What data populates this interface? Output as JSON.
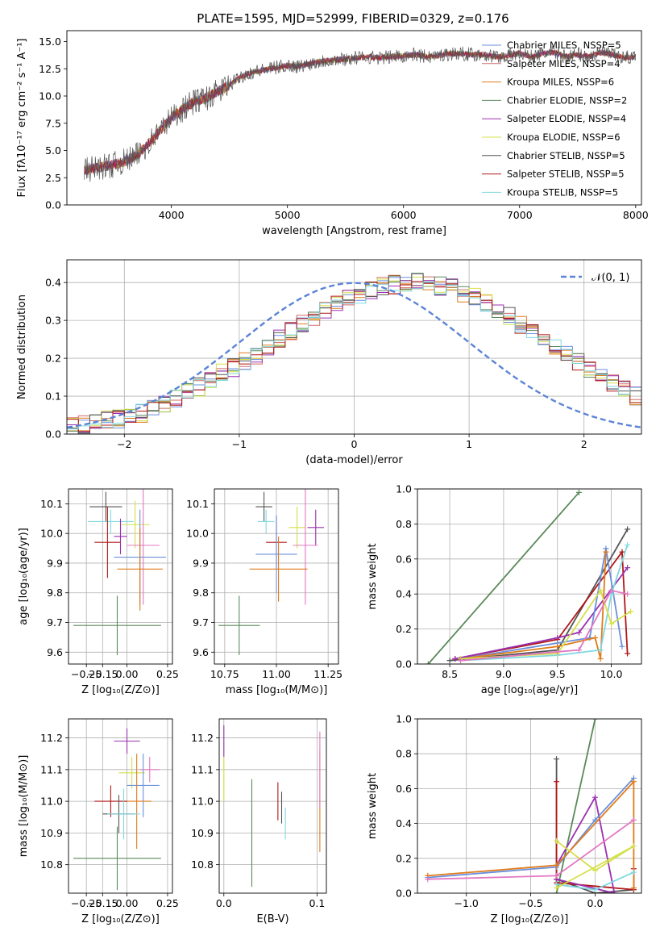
{
  "figure": {
    "title": "PLATE=1595, MJD=52999, FIBERID=0329, z=0.176",
    "legend_colors": [
      "#6a8fdc",
      "#d46a6a",
      "#e07b1a",
      "#5a8a5a",
      "#9b30b0",
      "#d4e04a",
      "#555555",
      "#b01818",
      "#7fd8e0"
    ]
  },
  "chart_data": [
    {
      "id": "spectrum",
      "type": "line",
      "xlabel": "wavelength [Angstrom, rest frame]",
      "ylabel": "Flux [fλ10⁻¹⁷ erg cm⁻² s⁻¹ A⁻¹]",
      "xlim": [
        3100,
        8050
      ],
      "ylim": [
        0,
        16
      ],
      "xticks": [
        4000,
        5000,
        6000,
        7000,
        8000
      ],
      "yticks": [
        0.0,
        2.5,
        5.0,
        7.5,
        10.0,
        12.5,
        15.0
      ],
      "grid": false,
      "legend_position": "top-right",
      "series": [
        {
          "name": "Chabrier MILES, N_SSP=5",
          "color": "#6a8fdc"
        },
        {
          "name": "Salpeter MILES, N_SSP=4",
          "color": "#d46a6a"
        },
        {
          "name": "Kroupa MILES, N_SSP=6",
          "color": "#e07b1a"
        },
        {
          "name": "Chabrier ELODIE, N_SSP=2",
          "color": "#5a8a5a"
        },
        {
          "name": "Salpeter ELODIE, N_SSP=4",
          "color": "#9b30b0"
        },
        {
          "name": "Kroupa ELODIE, N_SSP=6",
          "color": "#d4e04a"
        },
        {
          "name": "Chabrier STELIB, N_SSP=5",
          "color": "#555555"
        },
        {
          "name": "Salpeter STELIB, N_SSP=5",
          "color": "#b01818"
        },
        {
          "name": "Kroupa STELIB, N_SSP=5",
          "color": "#7fd8e0"
        }
      ],
      "data": {
        "x": [
          3250,
          3400,
          3550,
          3700,
          3850,
          4000,
          4100,
          4200,
          4300,
          4400,
          4500,
          4600,
          4700,
          4800,
          4900,
          5000,
          5100,
          5200,
          5300,
          5400,
          5500,
          5600,
          5700,
          5800,
          5900,
          6000,
          6100,
          6200,
          6300,
          6400,
          6500,
          6600,
          6700,
          6800,
          6900,
          7000,
          7100,
          7200,
          7300,
          7400,
          7500,
          7600,
          7700,
          7800,
          7900,
          8000
        ],
        "y": [
          3.2,
          3.5,
          3.8,
          4.5,
          6.2,
          8.0,
          8.8,
          9.5,
          9.8,
          10.4,
          11.0,
          11.8,
          12.2,
          12.4,
          12.6,
          12.8,
          12.7,
          13.0,
          13.2,
          13.3,
          13.4,
          13.5,
          13.6,
          13.5,
          13.6,
          13.7,
          13.8,
          13.6,
          13.7,
          13.9,
          13.9,
          13.8,
          13.8,
          13.6,
          13.7,
          13.9,
          13.6,
          13.9,
          14.0,
          13.6,
          13.8,
          13.6,
          14.0,
          13.8,
          13.5,
          13.6
        ]
      }
    },
    {
      "id": "residuals",
      "type": "bar",
      "xlabel": "(data-model)/error",
      "ylabel": "Normed distribution",
      "xlim": [
        -2.5,
        2.5
      ],
      "ylim": [
        0,
        0.46
      ],
      "xticks": [
        -2,
        -1,
        0,
        1,
        2
      ],
      "yticks": [
        0.0,
        0.1,
        0.2,
        0.3,
        0.4
      ],
      "grid": true,
      "legend_position": "top-right",
      "legend": "𝒩(0, 1)",
      "bin_width": 0.1,
      "bin_start": -2.5,
      "values": [
        0.02,
        0.025,
        0.03,
        0.04,
        0.04,
        0.045,
        0.055,
        0.065,
        0.08,
        0.095,
        0.11,
        0.125,
        0.14,
        0.16,
        0.175,
        0.19,
        0.21,
        0.23,
        0.25,
        0.27,
        0.29,
        0.31,
        0.33,
        0.345,
        0.36,
        0.37,
        0.38,
        0.39,
        0.395,
        0.4,
        0.4,
        0.395,
        0.39,
        0.385,
        0.37,
        0.36,
        0.345,
        0.33,
        0.31,
        0.29,
        0.27,
        0.25,
        0.23,
        0.21,
        0.19,
        0.17,
        0.15,
        0.135,
        0.12,
        0.1
      ]
    },
    {
      "id": "age-vs-z",
      "type": "scatter",
      "xlabel": "Z [log₁₀(Z/Z⊙)]",
      "ylabel": "age  [log₁₀(age/yr)]",
      "xlim": [
        -0.36,
        0.28
      ],
      "ylim": [
        9.56,
        10.15
      ],
      "xticks": [
        -0.25,
        -0.15,
        0.0,
        0.25
      ],
      "xticklabels": [
        "−0.25",
        "−0.15",
        "0.00",
        "0.25"
      ],
      "yticks": [
        9.6,
        9.7,
        9.8,
        9.9,
        10.0,
        10.1
      ],
      "grid": true,
      "points": [
        {
          "x": -0.13,
          "y": 10.09,
          "xe": 0.1,
          "ye": 0.05,
          "color": "#555555"
        },
        {
          "x": -0.1,
          "y": 10.04,
          "xe": 0.14,
          "ye": 0.04,
          "color": "#7fd8e0"
        },
        {
          "x": 0.05,
          "y": 10.03,
          "xe": 0.09,
          "ye": 0.08,
          "color": "#d4e04a"
        },
        {
          "x": -0.12,
          "y": 9.97,
          "xe": 0.08,
          "ye": 0.12,
          "color": "#b01818"
        },
        {
          "x": -0.04,
          "y": 9.99,
          "xe": 0.04,
          "ye": 0.06,
          "color": "#9b30b0"
        },
        {
          "x": 0.1,
          "y": 9.96,
          "xe": 0.1,
          "ye": 0.2,
          "color": "#e377c2"
        },
        {
          "x": 0.08,
          "y": 9.92,
          "xe": 0.16,
          "ye": 0.16,
          "color": "#6a8fdc"
        },
        {
          "x": 0.08,
          "y": 9.88,
          "xe": 0.14,
          "ye": 0.14,
          "color": "#e07b1a"
        },
        {
          "x": -0.06,
          "y": 9.69,
          "xe": 0.27,
          "ye": 0.1,
          "color": "#5a8a5a"
        }
      ]
    },
    {
      "id": "age-vs-mass",
      "type": "scatter",
      "xlabel": "mass [log₁₀(M/M⊙)]",
      "ylabel": "",
      "xlim": [
        10.7,
        11.3
      ],
      "ylim": [
        9.56,
        10.15
      ],
      "xticks": [
        10.75,
        11.0,
        11.25
      ],
      "yticks": [
        9.6,
        9.7,
        9.8,
        9.9,
        10.0,
        10.1
      ],
      "grid": true,
      "points": [
        {
          "x": 10.94,
          "y": 10.09,
          "xe": 0.04,
          "ye": 0.05,
          "color": "#555555"
        },
        {
          "x": 10.95,
          "y": 10.04,
          "xe": 0.04,
          "ye": 0.04,
          "color": "#7fd8e0"
        },
        {
          "x": 11.1,
          "y": 10.02,
          "xe": 0.04,
          "ye": 0.07,
          "color": "#d4e04a"
        },
        {
          "x": 11.19,
          "y": 10.02,
          "xe": 0.04,
          "ye": 0.06,
          "color": "#9b30b0"
        },
        {
          "x": 11.0,
          "y": 9.97,
          "xe": 0.05,
          "ye": 0.09,
          "color": "#b01818"
        },
        {
          "x": 11.14,
          "y": 9.96,
          "xe": 0.06,
          "ye": 0.2,
          "color": "#e377c2"
        },
        {
          "x": 11.0,
          "y": 9.93,
          "xe": 0.1,
          "ye": 0.13,
          "color": "#6a8fdc"
        },
        {
          "x": 11.01,
          "y": 9.88,
          "xe": 0.14,
          "ye": 0.11,
          "color": "#e07b1a"
        },
        {
          "x": 10.82,
          "y": 9.69,
          "xe": 0.1,
          "ye": 0.1,
          "color": "#5a8a5a"
        }
      ]
    },
    {
      "id": "weight-vs-age",
      "type": "line",
      "xlabel": "age  [log₁₀(age/yr)]",
      "ylabel": "mass weight",
      "xlim": [
        8.2,
        10.28
      ],
      "ylim": [
        0,
        1.0
      ],
      "xticks": [
        8.5,
        9.0,
        9.5,
        10.0
      ],
      "yticks": [
        0.0,
        0.2,
        0.4,
        0.6,
        0.8,
        1.0
      ],
      "grid": true,
      "series": [
        {
          "color": "#5a8a5a",
          "x": [
            8.3,
            9.7
          ],
          "y": [
            0.0,
            0.98
          ]
        },
        {
          "color": "#555555",
          "x": [
            8.5,
            9.5,
            10.15
          ],
          "y": [
            0.02,
            0.08,
            0.77
          ]
        },
        {
          "color": "#b01818",
          "x": [
            8.55,
            9.5,
            10.1,
            10.15
          ],
          "y": [
            0.03,
            0.14,
            0.64,
            0.06
          ]
        },
        {
          "color": "#9b30b0",
          "x": [
            8.55,
            9.5,
            9.7,
            10.15
          ],
          "y": [
            0.03,
            0.15,
            0.18,
            0.55
          ]
        },
        {
          "color": "#6a8fdc",
          "x": [
            8.6,
            9.5,
            9.8,
            9.95,
            10.1
          ],
          "y": [
            0.03,
            0.12,
            0.15,
            0.66,
            0.1
          ]
        },
        {
          "color": "#e07b1a",
          "x": [
            8.6,
            9.5,
            9.85,
            9.9,
            9.95
          ],
          "y": [
            0.03,
            0.1,
            0.15,
            0.03,
            0.64
          ]
        },
        {
          "color": "#7fd8e0",
          "x": [
            8.6,
            9.5,
            9.9,
            10.0,
            10.15
          ],
          "y": [
            0.02,
            0.05,
            0.08,
            0.4,
            0.68
          ]
        },
        {
          "color": "#d4e04a",
          "x": [
            8.6,
            9.5,
            9.9,
            10.0,
            10.18
          ],
          "y": [
            0.03,
            0.06,
            0.42,
            0.23,
            0.3
          ]
        },
        {
          "color": "#e377c2",
          "x": [
            8.6,
            9.5,
            9.7,
            10.0,
            10.15
          ],
          "y": [
            0.02,
            0.07,
            0.08,
            0.42,
            0.4
          ]
        }
      ]
    },
    {
      "id": "mass-vs-z",
      "type": "scatter",
      "xlabel": "Z [log₁₀(Z/Z⊙)]",
      "ylabel": "mass [log₁₀(M/M⊙)]",
      "xlim": [
        -0.36,
        0.28
      ],
      "ylim": [
        10.71,
        11.26
      ],
      "xticks": [
        -0.25,
        -0.15,
        0.0,
        0.25
      ],
      "xticklabels": [
        "−0.25",
        "−0.15",
        "0.00",
        "0.25"
      ],
      "yticks": [
        10.8,
        10.9,
        11.0,
        11.1,
        11.2
      ],
      "grid": true,
      "points": [
        {
          "x": 0.0,
          "y": 11.19,
          "xe": 0.08,
          "ye": 0.04,
          "color": "#9b30b0"
        },
        {
          "x": 0.03,
          "y": 11.09,
          "xe": 0.08,
          "ye": 0.05,
          "color": "#d4e04a"
        },
        {
          "x": 0.1,
          "y": 11.05,
          "xe": 0.1,
          "ye": 0.1,
          "color": "#6a8fdc"
        },
        {
          "x": 0.06,
          "y": 11.0,
          "xe": 0.09,
          "ye": 0.15,
          "color": "#e07b1a"
        },
        {
          "x": -0.1,
          "y": 11.0,
          "xe": 0.1,
          "ye": 0.05,
          "color": "#b01818"
        },
        {
          "x": -0.05,
          "y": 10.96,
          "xe": 0.1,
          "ye": 0.06,
          "color": "#555555"
        },
        {
          "x": -0.02,
          "y": 10.96,
          "xe": 0.1,
          "ye": 0.08,
          "color": "#7fd8e0"
        },
        {
          "x": -0.06,
          "y": 10.82,
          "xe": 0.27,
          "ye": 0.1,
          "color": "#5a8a5a"
        },
        {
          "x": 0.14,
          "y": 11.1,
          "xe": 0.06,
          "ye": 0.04,
          "color": "#e377c2"
        }
      ]
    },
    {
      "id": "mass-vs-ebv",
      "type": "scatter",
      "xlabel": "E(B-V)",
      "ylabel": "",
      "xlim": [
        -0.005,
        0.11
      ],
      "ylim": [
        10.71,
        11.26
      ],
      "xticks": [
        0.0,
        0.1
      ],
      "yticks": [
        10.8,
        10.9,
        11.0,
        11.1,
        11.2
      ],
      "grid": true,
      "points": [
        {
          "x": 0.0,
          "y": 11.19,
          "xe": 0,
          "ye": 0.05,
          "color": "#9b30b0"
        },
        {
          "x": 0.0,
          "y": 11.07,
          "xe": 0,
          "ye": 0.07,
          "color": "#d4e04a"
        },
        {
          "x": 0.03,
          "y": 10.9,
          "xe": 0,
          "ye": 0.17,
          "color": "#5a8a5a"
        },
        {
          "x": 0.058,
          "y": 11.0,
          "xe": 0,
          "ye": 0.06,
          "color": "#b01818"
        },
        {
          "x": 0.062,
          "y": 10.98,
          "xe": 0,
          "ye": 0.05,
          "color": "#555555"
        },
        {
          "x": 0.066,
          "y": 10.93,
          "xe": 0,
          "ye": 0.05,
          "color": "#7fd8e0"
        },
        {
          "x": 0.103,
          "y": 11.0,
          "xe": 0,
          "ye": 0.16,
          "color": "#e07b1a"
        },
        {
          "x": 0.103,
          "y": 11.1,
          "xe": 0,
          "ye": 0.12,
          "color": "#e377c2"
        }
      ]
    },
    {
      "id": "weight-vs-z",
      "type": "line",
      "xlabel": "Z [log₁₀(Z/Z⊙)]",
      "ylabel": "mass weight",
      "xlim": [
        -1.38,
        0.36
      ],
      "ylim": [
        0,
        1.0
      ],
      "xticks": [
        -1.0,
        -0.5,
        0.0
      ],
      "xticklabels": [
        "−1.0",
        "−0.5",
        "0.0"
      ],
      "yticks": [
        0.0,
        0.2,
        0.4,
        0.6,
        0.8,
        1.0
      ],
      "grid": true,
      "series": [
        {
          "color": "#5a8a5a",
          "x": [
            -0.3,
            0.0
          ],
          "y": [
            0.0,
            1.0
          ]
        },
        {
          "color": "#555555",
          "x": [
            -0.3,
            -0.3,
            0.0,
            0.3
          ],
          "y": [
            0.77,
            0.08,
            0.0,
            0.02
          ]
        },
        {
          "color": "#b01818",
          "x": [
            -0.3,
            -0.3,
            0.3,
            0.3
          ],
          "y": [
            0.64,
            0.06,
            0.02,
            0.14
          ]
        },
        {
          "color": "#9b30b0",
          "x": [
            -0.3,
            0.0,
            0.15,
            -0.3
          ],
          "y": [
            0.16,
            0.55,
            0.0,
            0.08
          ]
        },
        {
          "color": "#6a8fdc",
          "x": [
            -1.3,
            -0.3,
            0.0,
            0.3
          ],
          "y": [
            0.09,
            0.15,
            0.42,
            0.66
          ]
        },
        {
          "color": "#e07b1a",
          "x": [
            -1.3,
            -0.3,
            0.3,
            0.3
          ],
          "y": [
            0.1,
            0.16,
            0.64,
            0.03
          ]
        },
        {
          "color": "#7fd8e0",
          "x": [
            -0.3,
            0.0,
            0.3
          ],
          "y": [
            0.05,
            0.02,
            0.12
          ]
        },
        {
          "color": "#d4e04a",
          "x": [
            -0.3,
            0.0,
            0.3,
            -0.3
          ],
          "y": [
            0.3,
            0.13,
            0.27,
            0.03
          ]
        },
        {
          "color": "#e377c2",
          "x": [
            -1.3,
            -0.3,
            0.3
          ],
          "y": [
            0.08,
            0.1,
            0.42
          ]
        }
      ]
    }
  ]
}
